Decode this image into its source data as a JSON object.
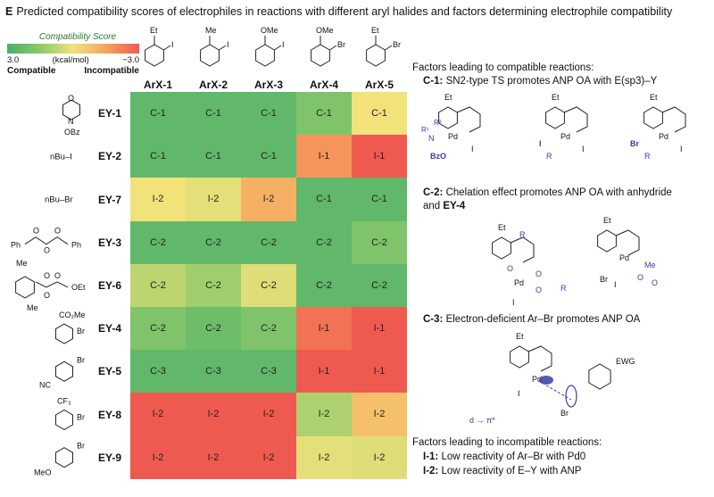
{
  "title_letter": "E",
  "title": "Predicted compatibility scores of electrophiles in reactions with different aryl halides and factors determining electrophile compatibility",
  "legend": {
    "title": "Compatibility Score",
    "left_value": "3.0",
    "unit": "(kcal/mol)",
    "right_value": "−3.0",
    "left_label": "Compatible",
    "right_label": "Incompatible",
    "colors": [
      "#4caf6a",
      "#8cc96a",
      "#f2e27a",
      "#f6a35e",
      "#ef5a50"
    ]
  },
  "aryl_halide_substituents": [
    {
      "sub": "Et",
      "hal": "I"
    },
    {
      "sub": "Me",
      "hal": "I"
    },
    {
      "sub": "OMe",
      "hal": "I"
    },
    {
      "sub": "OMe",
      "hal": "Br"
    },
    {
      "sub": "Et",
      "hal": "Br"
    }
  ],
  "electrophile_structures": [
    {
      "text": [
        "O",
        "N",
        "OBz"
      ]
    },
    {
      "text": [
        "nBu–I"
      ]
    },
    {
      "text": [
        "nBu–Br"
      ]
    },
    {
      "text": [
        "Ph",
        "O",
        "O",
        "O",
        "Ph"
      ]
    },
    {
      "text": [
        "Me",
        "O",
        "O",
        "OEt",
        "O",
        "Me"
      ]
    },
    {
      "text": [
        "CO₂Me",
        "Br"
      ]
    },
    {
      "text": [
        "Br",
        "NC"
      ]
    },
    {
      "text": [
        "CF₃",
        "Br"
      ]
    },
    {
      "text": [
        "Br",
        "MeO"
      ]
    }
  ],
  "chart_data": {
    "type": "heatmap",
    "columns": [
      "ArX-1",
      "ArX-2",
      "ArX-3",
      "ArX-4",
      "ArX-5"
    ],
    "rows": [
      "EY-1",
      "EY-2",
      "EY-7",
      "EY-3",
      "EY-6",
      "EY-4",
      "EY-5",
      "EY-8",
      "EY-9"
    ],
    "labels": [
      [
        "C-1",
        "C-1",
        "C-1",
        "C-1",
        "C-1"
      ],
      [
        "C-1",
        "C-1",
        "C-1",
        "I-1",
        "I-1"
      ],
      [
        "I-2",
        "I-2",
        "I-2",
        "C-1",
        "C-1"
      ],
      [
        "C-2",
        "C-2",
        "C-2",
        "C-2",
        "C-2"
      ],
      [
        "C-2",
        "C-2",
        "C-2",
        "C-2",
        "C-2"
      ],
      [
        "C-2",
        "C-2",
        "C-2",
        "I-1",
        "I-1"
      ],
      [
        "C-3",
        "C-3",
        "C-3",
        "I-1",
        "I-1"
      ],
      [
        "I-2",
        "I-2",
        "I-2",
        "I-2",
        "I-2"
      ],
      [
        "I-2",
        "I-2",
        "I-2",
        "I-2",
        "I-2"
      ]
    ],
    "scores": [
      [
        2.5,
        2.5,
        2.5,
        1.8,
        0.0
      ],
      [
        2.5,
        2.5,
        2.5,
        -1.8,
        -3.0
      ],
      [
        0.0,
        0.2,
        -1.2,
        2.5,
        2.5
      ],
      [
        2.5,
        2.5,
        2.5,
        2.5,
        1.8
      ],
      [
        0.8,
        1.2,
        0.3,
        2.5,
        2.5
      ],
      [
        1.8,
        2.2,
        1.8,
        -2.5,
        -3.0
      ],
      [
        2.5,
        2.5,
        2.5,
        -3.0,
        -3.0
      ],
      [
        -3.0,
        -3.0,
        -3.0,
        1.0,
        -0.8
      ],
      [
        -3.0,
        -3.0,
        -3.0,
        0.2,
        0.3
      ]
    ],
    "colorbar_range": [
      3.0,
      -3.0
    ],
    "colorbar_label": "Compatibility Score (kcal/mol)"
  },
  "factors": {
    "compatible_header": "Factors leading to compatible reactions:",
    "c1_label": "C-1:",
    "c1_text": "SN2-type TS promotes ANP OA with E(sp3)–Y",
    "c1_scheme_text": [
      "Et",
      "R²",
      "R¹",
      "N",
      "Pd",
      "BzO",
      "I",
      "Et",
      "Pd",
      "I",
      "R",
      "I",
      "Et",
      "Pd",
      "Br",
      "R",
      "I"
    ],
    "c2_label": "C-2:",
    "c2_text": "Chelation effect promotes ANP OA with anhydride",
    "c2_text2_prefix": "and ",
    "c2_text2_bold": "EY-4",
    "c2_scheme_text": [
      "Et",
      "R",
      "Pd",
      "O",
      "O",
      "O",
      "R",
      "I",
      "Et",
      "Pd",
      "Me",
      "O",
      "Br",
      "I",
      "O"
    ],
    "c3_label": "C-3:",
    "c3_text": "Electron-deficient Ar–Br promotes ANP OA",
    "c3_scheme_text": [
      "Et",
      "Pd",
      "I",
      "EWG",
      "Br",
      "d → π*"
    ],
    "incompatible_header": "Factors leading to incompatible reactions:",
    "i1_label": "I-1:",
    "i1_text": "Low reactivity of Ar–Br with Pd0",
    "i2_label": "I-2:",
    "i2_text": "Low reactivity of E–Y with ANP"
  }
}
